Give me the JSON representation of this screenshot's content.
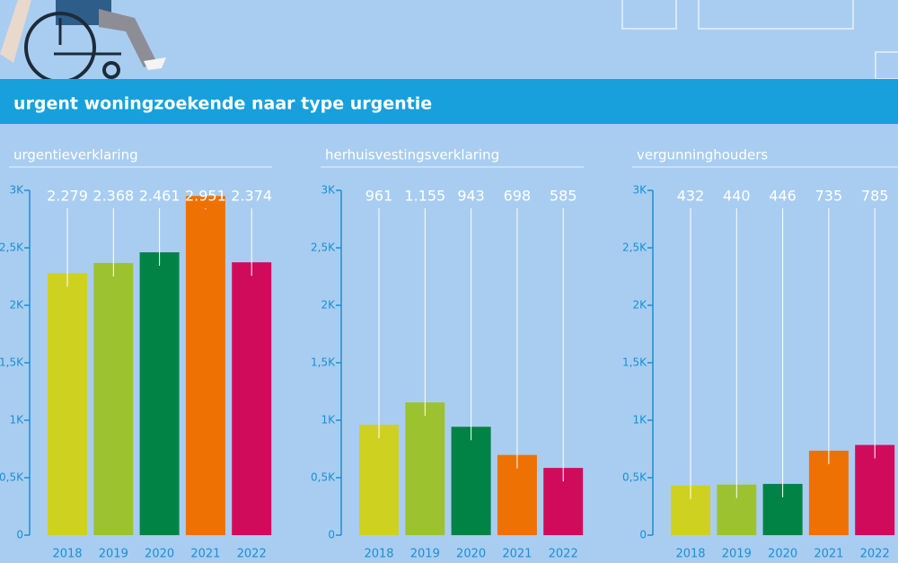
{
  "title": "urgent woningzoekende naar type urgentie",
  "chart_data": [
    {
      "type": "bar",
      "title": "urgentieverklaring",
      "categories": [
        "2018",
        "2019",
        "2020",
        "2021",
        "2022"
      ],
      "values": [
        2279,
        2368,
        2461,
        2951,
        2374
      ],
      "value_labels": [
        "2.279",
        "2.368",
        "2.461",
        "2.951",
        "2.374"
      ],
      "colors": [
        "#cfd120",
        "#9dc230",
        "#008344",
        "#ee7203",
        "#d10b5b"
      ],
      "ylim": [
        0,
        3000
      ],
      "yticks": [
        0,
        {
          "value": 500,
          "label": "0,5K"
        },
        {
          "value": 1000,
          "label": "1K"
        },
        {
          "value": 1500,
          "label": "1,5K"
        },
        {
          "value": 2000,
          "label": "2K"
        },
        {
          "value": 2500,
          "label": "2,5K"
        },
        {
          "value": 3000,
          "label": "3K"
        }
      ]
    },
    {
      "type": "bar",
      "title": "herhuisvestingsverklaring",
      "categories": [
        "2018",
        "2019",
        "2020",
        "2021",
        "2022"
      ],
      "values": [
        961,
        1155,
        943,
        698,
        585
      ],
      "value_labels": [
        "961",
        "1.155",
        "943",
        "698",
        "585"
      ],
      "colors": [
        "#cfd120",
        "#9dc230",
        "#008344",
        "#ee7203",
        "#d10b5b"
      ],
      "ylim": [
        0,
        3000
      ],
      "yticks": [
        0,
        {
          "value": 500,
          "label": "0,5K"
        },
        {
          "value": 1000,
          "label": "1K"
        },
        {
          "value": 1500,
          "label": "1,5K"
        },
        {
          "value": 2000,
          "label": "2K"
        },
        {
          "value": 2500,
          "label": "2,5K"
        },
        {
          "value": 3000,
          "label": "3K"
        }
      ]
    },
    {
      "type": "bar",
      "title": "vergunninghouders",
      "categories": [
        "2018",
        "2019",
        "2020",
        "2021",
        "2022"
      ],
      "values": [
        432,
        440,
        446,
        735,
        785
      ],
      "value_labels": [
        "432",
        "440",
        "446",
        "735",
        "785"
      ],
      "colors": [
        "#cfd120",
        "#9dc230",
        "#008344",
        "#ee7203",
        "#d10b5b"
      ],
      "ylim": [
        0,
        3000
      ],
      "yticks": [
        0,
        {
          "value": 500,
          "label": "0,5K"
        },
        {
          "value": 1000,
          "label": "1K"
        },
        {
          "value": 1500,
          "label": "1,5K"
        },
        {
          "value": 2000,
          "label": "2K"
        },
        {
          "value": 2500,
          "label": "2,5K"
        },
        {
          "value": 3000,
          "label": "3K"
        }
      ]
    }
  ]
}
